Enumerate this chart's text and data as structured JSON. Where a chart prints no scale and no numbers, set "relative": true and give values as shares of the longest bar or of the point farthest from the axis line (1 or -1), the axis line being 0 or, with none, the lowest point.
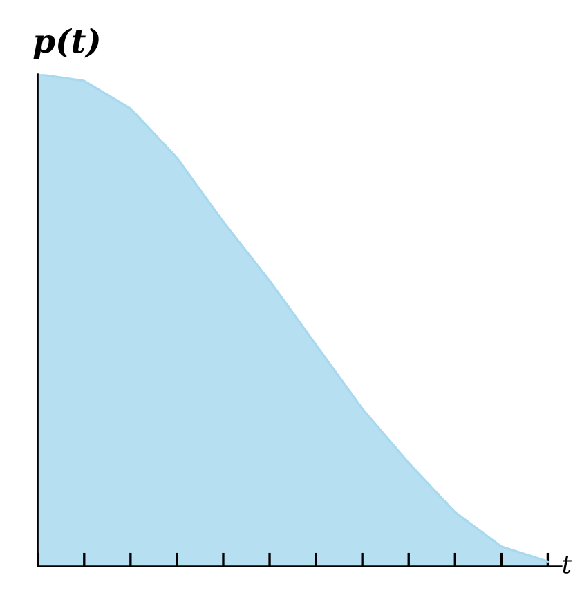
{
  "chart_data": {
    "type": "area",
    "relative": true,
    "ylabel": "p(t)",
    "xlabel": "t",
    "categories": [
      null,
      null,
      null,
      null,
      null,
      null,
      null,
      null,
      null,
      null,
      null,
      null
    ],
    "series": [
      {
        "color": "#a9d9ef",
        "values": [
          1.0,
          0.986,
          0.93,
          0.83,
          0.7,
          0.58,
          0.45,
          0.32,
          0.21,
          0.11,
          0.04,
          0.01
        ]
      }
    ],
    "grid": false,
    "legend": false
  }
}
